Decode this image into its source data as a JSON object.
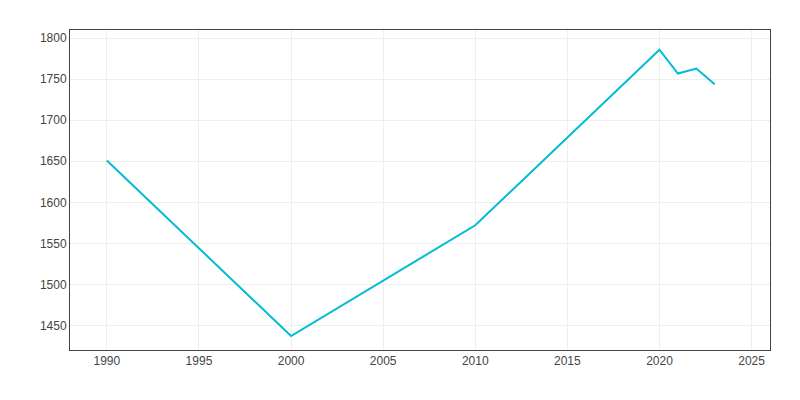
{
  "chart_data": {
    "type": "line",
    "x": [
      1990,
      2000,
      2010,
      2020,
      2021,
      2022,
      2023
    ],
    "values": [
      1651,
      1437,
      1572,
      1786,
      1757,
      1763,
      1744
    ],
    "color": "#00BCD4",
    "xlim": [
      1988,
      2026
    ],
    "ylim": [
      1420,
      1810
    ],
    "xticks": [
      1990,
      1995,
      2000,
      2005,
      2010,
      2015,
      2020,
      2025
    ],
    "yticks": [
      1450,
      1500,
      1550,
      1600,
      1650,
      1700,
      1750,
      1800
    ],
    "grid": true
  }
}
